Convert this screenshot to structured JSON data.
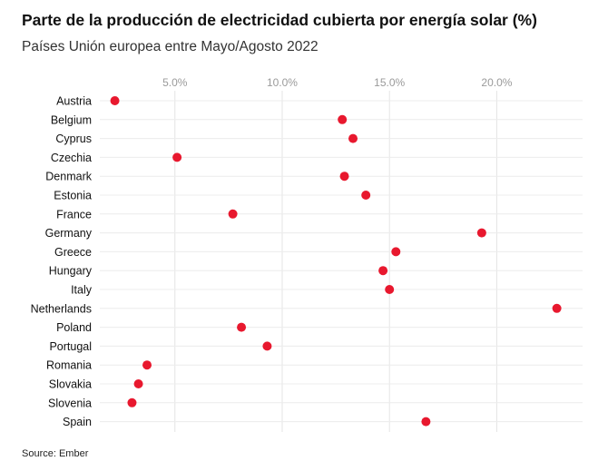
{
  "chart_data": {
    "type": "scatter",
    "title": "Parte de la producción de electricidad cubierta por energía solar (%)",
    "subtitle": "Países Unión europea entre Mayo/Agosto 2022",
    "source": "Source: Ember",
    "xlim": [
      1.5,
      24.0
    ],
    "x_ticks": [
      5,
      10,
      15,
      20
    ],
    "x_tick_labels": [
      "5.0%",
      "10.0%",
      "15.0%",
      "20.0%"
    ],
    "grid": true,
    "point_color": "#e8182e",
    "categories": [
      "Austria",
      "Belgium",
      "Cyprus",
      "Czechia",
      "Denmark",
      "Estonia",
      "France",
      "Germany",
      "Greece",
      "Hungary",
      "Italy",
      "Netherlands",
      "Poland",
      "Portugal",
      "Romania",
      "Slovakia",
      "Slovenia",
      "Spain"
    ],
    "values": [
      2.2,
      12.8,
      13.3,
      5.1,
      12.9,
      13.9,
      7.7,
      19.3,
      15.3,
      14.7,
      15.0,
      22.8,
      8.1,
      9.3,
      3.7,
      3.3,
      3.0,
      16.7
    ]
  }
}
